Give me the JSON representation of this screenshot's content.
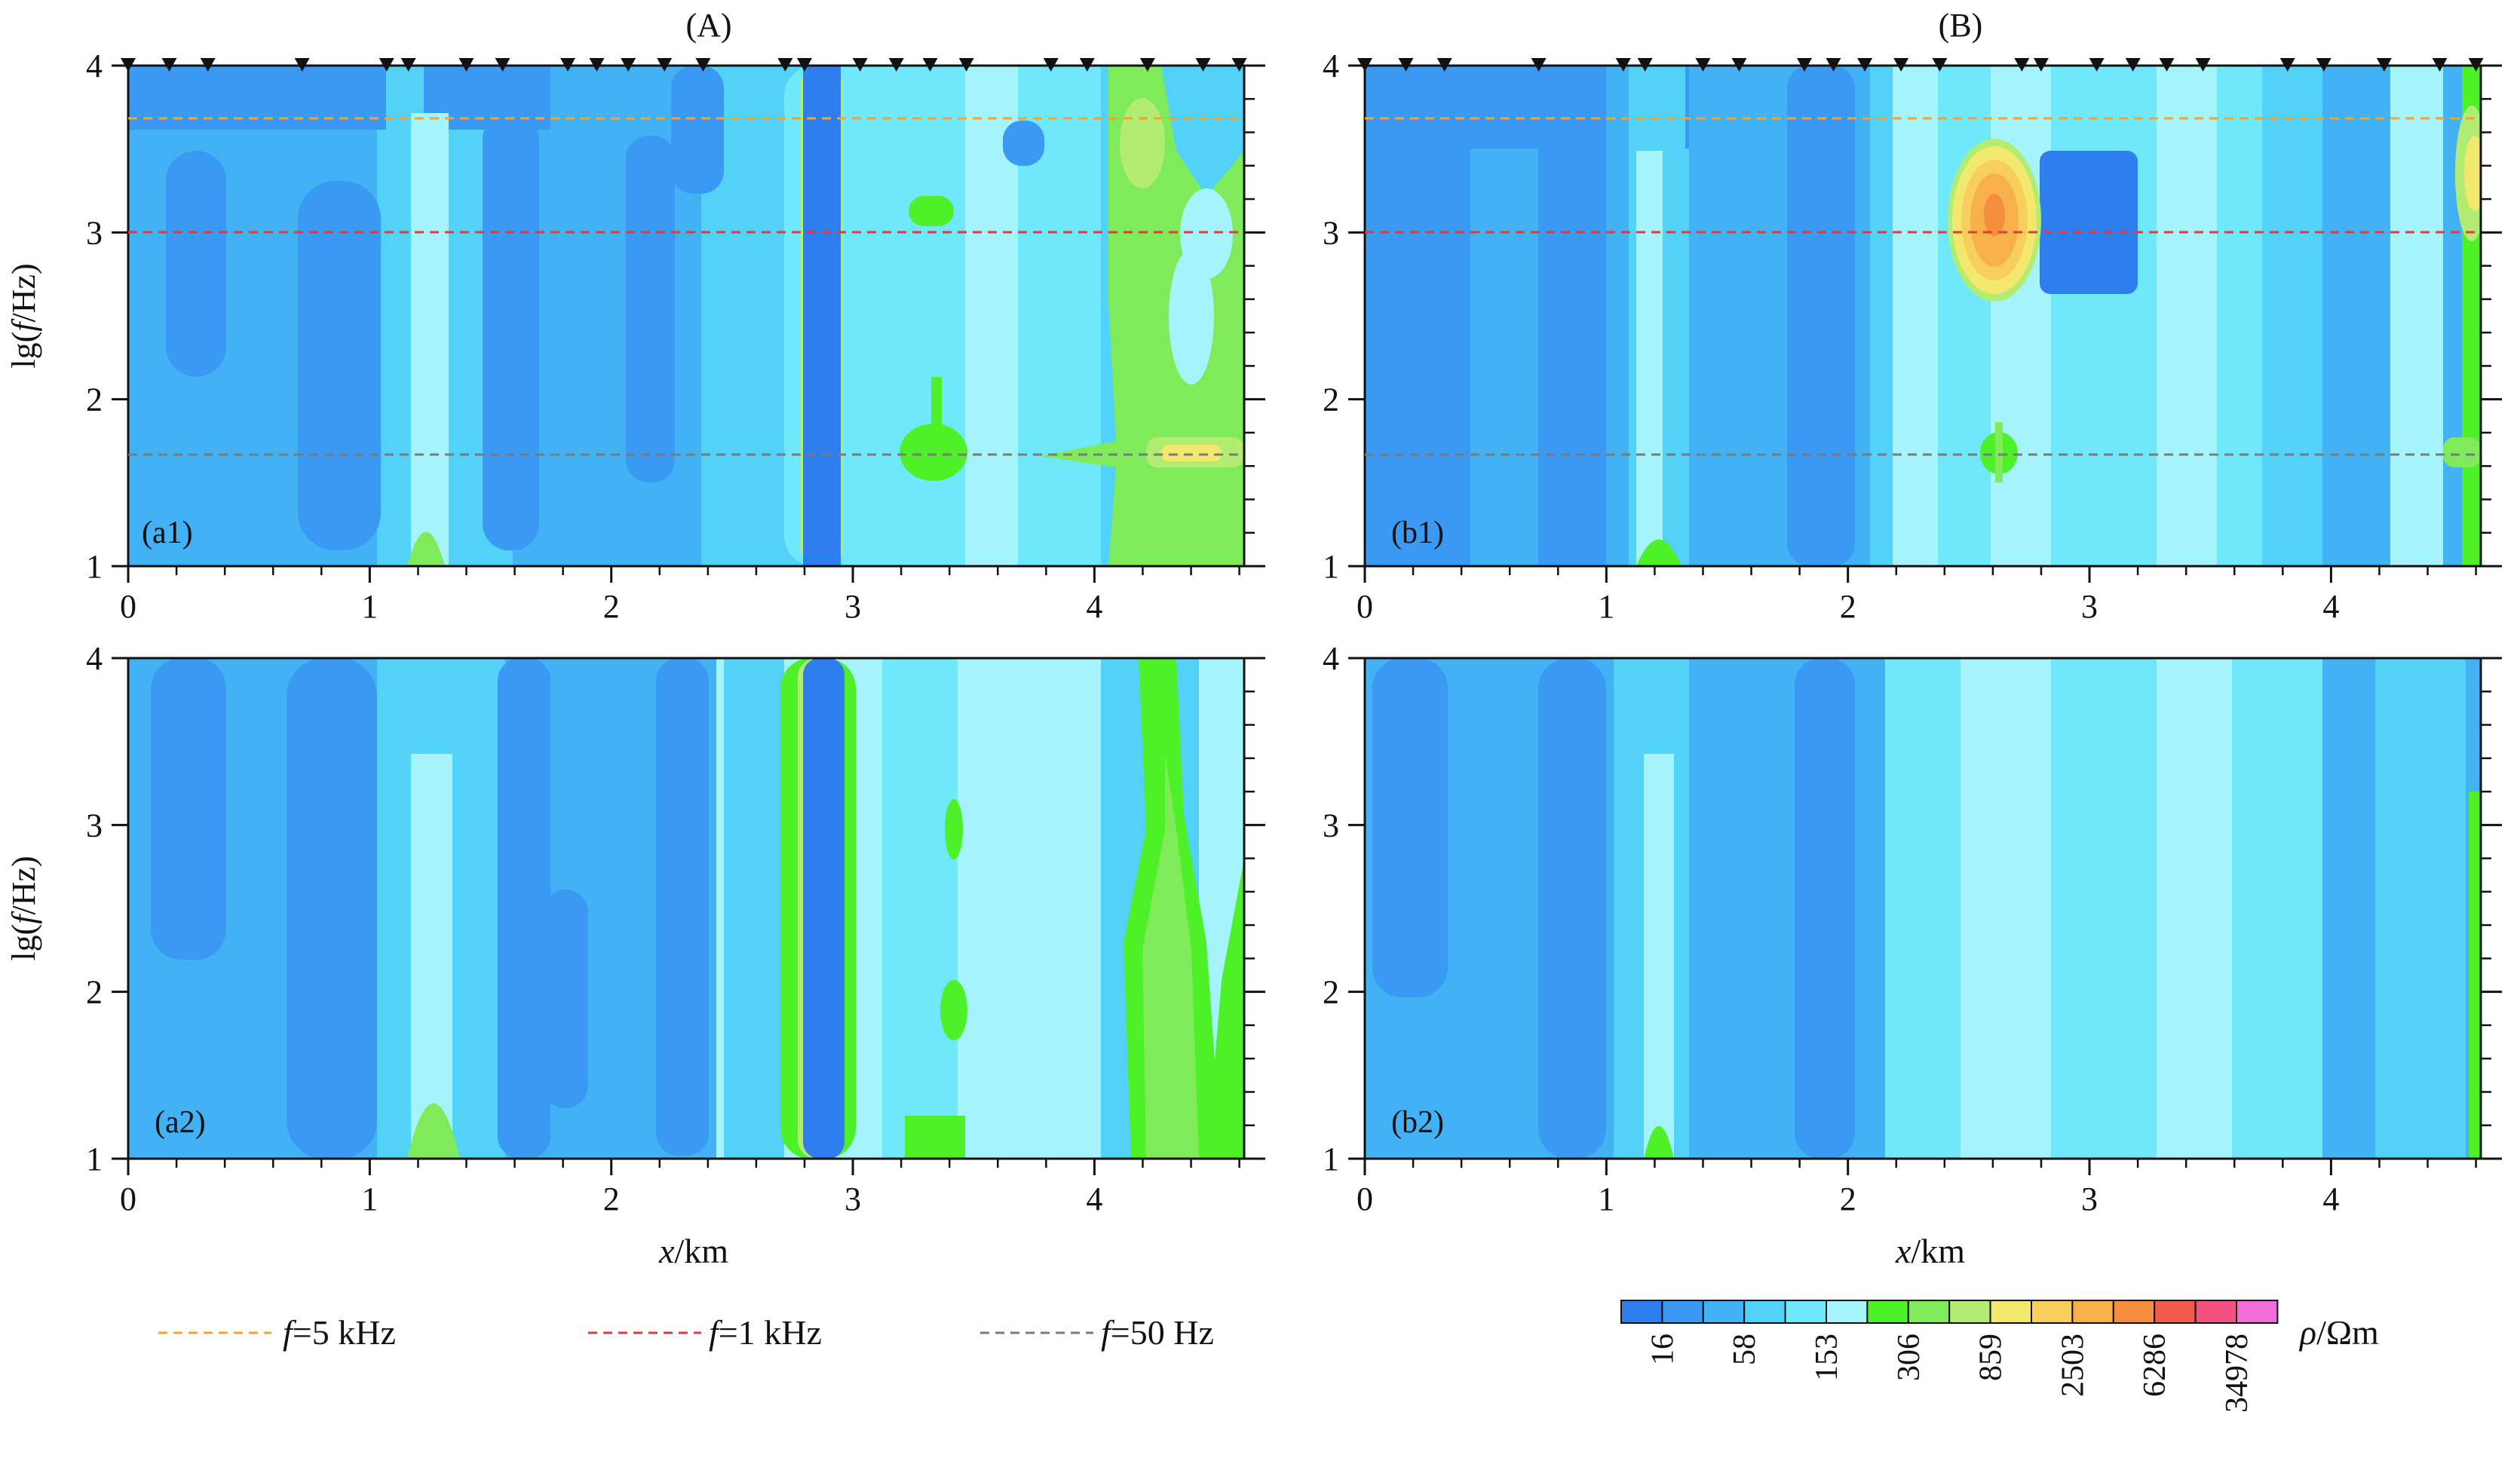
{
  "figure": {
    "column_titles": [
      "(A)",
      "(B)"
    ],
    "panel_labels": [
      "(a1)",
      "(b1)",
      "(a2)",
      "(b2)"
    ],
    "xlabel_var": "x",
    "xlabel_unit": "/km",
    "ylabel_pre": "lg(",
    "ylabel_var": "f",
    "ylabel_post": "/Hz)"
  },
  "legend": {
    "lines": [
      {
        "var": "f",
        "text": "=5 kHz",
        "color": "#f5a330"
      },
      {
        "var": "f",
        "text": "=1 kHz",
        "color": "#e03a3a"
      },
      {
        "var": "f",
        "text": "=50 Hz",
        "color": "#7a7a7a"
      }
    ]
  },
  "colorbar": {
    "label_var": "ρ",
    "label_unit": "/Ωm",
    "colors": [
      "#2f7ef0",
      "#3a99f2",
      "#42b2f5",
      "#52d2f8",
      "#6fe8fa",
      "#a6f4fb",
      "#4ef128",
      "#7fea5a",
      "#b2ec72",
      "#f3e86e",
      "#f8cf5d",
      "#f8b04b",
      "#f58d3f",
      "#f25a4c",
      "#f2507e",
      "#f06cd8"
    ],
    "tick_labels": [
      "16",
      "58",
      "153",
      "306",
      "859",
      "2503",
      "6286",
      "34978"
    ]
  },
  "chart_data": [
    {
      "panel": "(a1)",
      "type": "heatmap",
      "x_ticks": [
        "0",
        "1",
        "2",
        "3",
        "4"
      ],
      "y_ticks": [
        "1",
        "2",
        "3",
        "4"
      ],
      "xlim": [
        0,
        4.62
      ],
      "ylim": [
        1,
        4
      ],
      "stations_km": [
        0.0,
        0.17,
        0.33,
        0.72,
        1.07,
        1.16,
        1.4,
        1.55,
        1.82,
        1.94,
        2.07,
        2.22,
        2.38,
        2.72,
        2.8,
        3.03,
        3.18,
        3.32,
        3.47,
        3.82,
        3.97,
        4.22,
        4.45,
        4.6
      ],
      "reference_lines_lgf": [
        3.7,
        3.0,
        1.7
      ]
    },
    {
      "panel": "(b1)",
      "type": "heatmap",
      "x_ticks": [
        "0",
        "1",
        "2",
        "3",
        "4"
      ],
      "y_ticks": [
        "1",
        "2",
        "3",
        "4"
      ],
      "xlim": [
        0,
        4.62
      ],
      "ylim": [
        1,
        4
      ],
      "stations_km": [
        0.0,
        0.17,
        0.33,
        0.72,
        1.07,
        1.16,
        1.4,
        1.55,
        1.82,
        1.94,
        2.07,
        2.22,
        2.38,
        2.72,
        2.8,
        3.03,
        3.18,
        3.32,
        3.47,
        3.82,
        3.97,
        4.22,
        4.45,
        4.6
      ],
      "reference_lines_lgf": [
        3.7,
        3.0,
        1.7
      ]
    },
    {
      "panel": "(a2)",
      "type": "heatmap",
      "x_ticks": [
        "0",
        "1",
        "2",
        "3",
        "4"
      ],
      "y_ticks": [
        "1",
        "2",
        "3",
        "4"
      ],
      "xlim": [
        0,
        4.62
      ],
      "ylim": [
        1,
        4
      ]
    },
    {
      "panel": "(b2)",
      "type": "heatmap",
      "x_ticks": [
        "0",
        "1",
        "2",
        "3",
        "4"
      ],
      "y_ticks": [
        "1",
        "2",
        "3",
        "4"
      ],
      "xlim": [
        0,
        4.62
      ],
      "ylim": [
        1,
        4
      ]
    }
  ]
}
